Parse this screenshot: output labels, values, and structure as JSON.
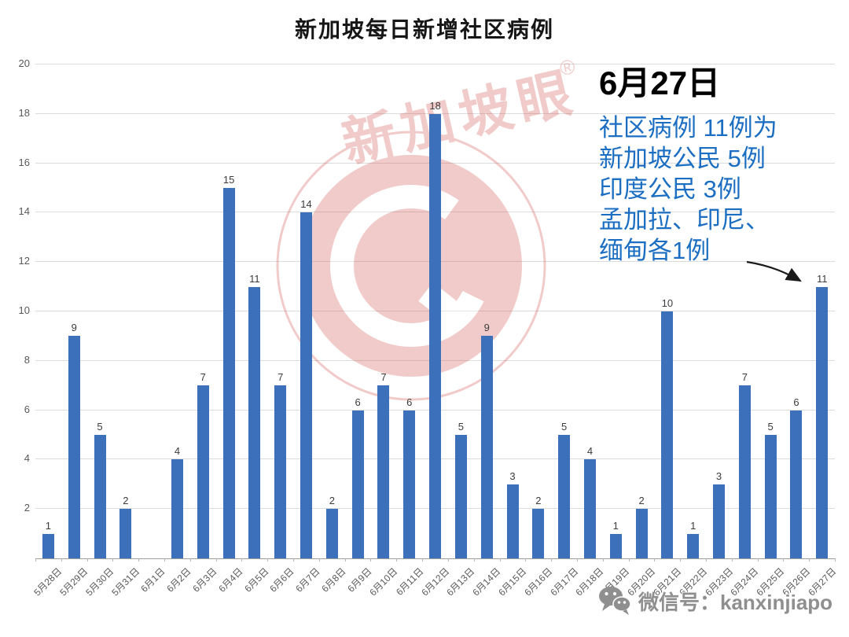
{
  "title": "新加坡每日新增社区病例",
  "annotation": {
    "date": "6月27日",
    "lines": [
      "社区病例 11例为",
      "新加坡公民 5例",
      "印度公民 3例",
      "孟加拉、印尼、",
      "缅甸各1例"
    ]
  },
  "watermark": {
    "brand": "新加坡眼",
    "registered": "®"
  },
  "footer": {
    "wechat_label": "微信号：kanxinjiapo",
    "icon": "wechat-icon"
  },
  "colors": {
    "bar": "#3c70bb",
    "annotation_blue": "#1b6ec2",
    "grid": "#dcdcdc",
    "axis_text": "#595959",
    "watermark_red": "#cf4946",
    "footer_gray": "#8f8f8f"
  },
  "chart_data": {
    "type": "bar",
    "title": "新加坡每日新增社区病例",
    "categories": [
      "5月28日",
      "5月29日",
      "5月30日",
      "5月31日",
      "6月1日",
      "6月2日",
      "6月3日",
      "6月4日",
      "6月5日",
      "6月6日",
      "6月7日",
      "6月8日",
      "6月9日",
      "6月10日",
      "6月11日",
      "6月12日",
      "6月13日",
      "6月14日",
      "6月15日",
      "6月16日",
      "6月17日",
      "6月18日",
      "6月19日",
      "6月20日",
      "6月21日",
      "6月22日",
      "6月23日",
      "6月24日",
      "6月25日",
      "6月26日",
      "6月27日"
    ],
    "values": [
      1,
      9,
      5,
      2,
      0,
      4,
      7,
      15,
      11,
      7,
      14,
      2,
      6,
      7,
      6,
      18,
      5,
      9,
      3,
      2,
      5,
      4,
      1,
      2,
      10,
      1,
      3,
      7,
      5,
      6,
      11
    ],
    "xlabel": "",
    "ylabel": "",
    "ylim": [
      0,
      20
    ],
    "yticks": [
      2,
      4,
      6,
      8,
      10,
      12,
      14,
      16,
      18,
      20
    ],
    "grid": true,
    "legend": "none",
    "bar_labels": true
  }
}
